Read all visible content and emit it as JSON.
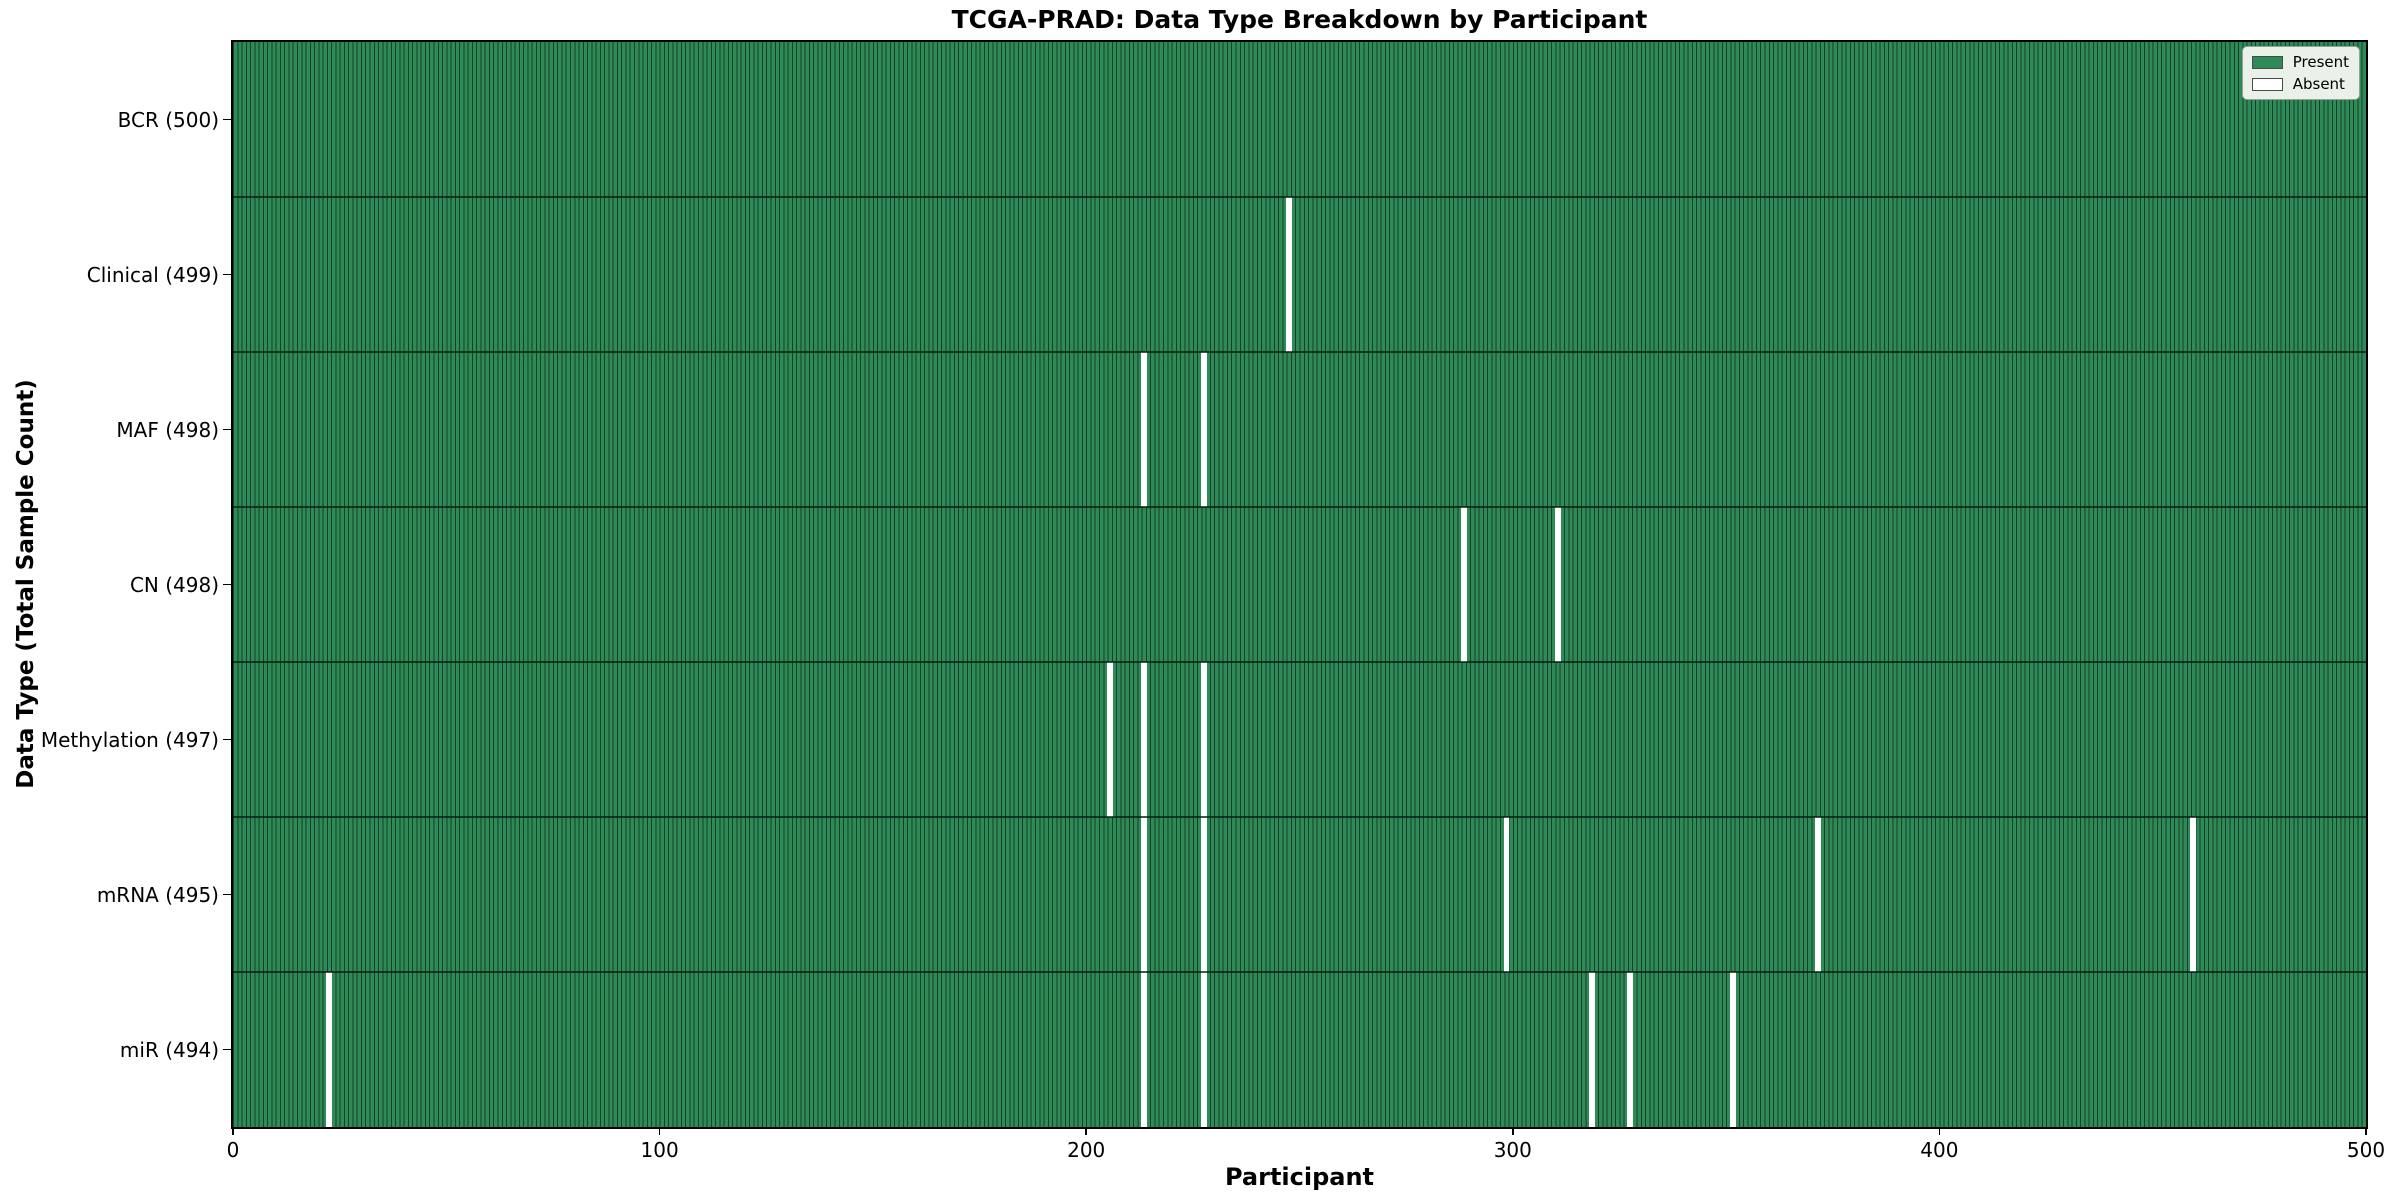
{
  "figure": {
    "title": "TCGA-PRAD: Data Type Breakdown by Participant",
    "xlabel": "Participant",
    "ylabel": "Data Type (Total Sample Count)"
  },
  "legend": {
    "position": "upper right",
    "items": [
      {
        "label": "Present",
        "color": "#2e8b57"
      },
      {
        "label": "Absent",
        "color": "#ffffff"
      }
    ]
  },
  "chart_data": {
    "type": "heatmap",
    "title": "TCGA-PRAD: Data Type Breakdown by Participant",
    "xlabel": "Participant",
    "ylabel": "Data Type (Total Sample Count)",
    "x_axis": {
      "min": 0,
      "max": 500,
      "ticks": [
        0,
        100,
        200,
        300,
        400,
        500
      ]
    },
    "participants_total": 500,
    "legend": [
      "Present",
      "Absent"
    ],
    "legend_position": "upper right",
    "grid": false,
    "colors": {
      "present": "#2e8b57",
      "absent": "#ffffff",
      "bar_edge": "#16402a"
    },
    "rows": [
      {
        "label": "BCR (500)",
        "data_type": "BCR",
        "present_count": 500,
        "absent_participants": []
      },
      {
        "label": "Clinical (499)",
        "data_type": "Clinical",
        "present_count": 499,
        "absent_participants": [
          247
        ]
      },
      {
        "label": "MAF (498)",
        "data_type": "MAF",
        "present_count": 498,
        "absent_participants": [
          213,
          227
        ]
      },
      {
        "label": "CN (498)",
        "data_type": "CN",
        "present_count": 498,
        "absent_participants": [
          288,
          310
        ]
      },
      {
        "label": "Methylation (497)",
        "data_type": "Methylation",
        "present_count": 497,
        "absent_participants": [
          205,
          213,
          227
        ]
      },
      {
        "label": "mRNA (495)",
        "data_type": "mRNA",
        "present_count": 495,
        "absent_participants": [
          213,
          227,
          298,
          371,
          459
        ]
      },
      {
        "label": "miR (494)",
        "data_type": "miR",
        "present_count": 494,
        "absent_participants": [
          22,
          213,
          227,
          318,
          327,
          351
        ]
      }
    ]
  }
}
